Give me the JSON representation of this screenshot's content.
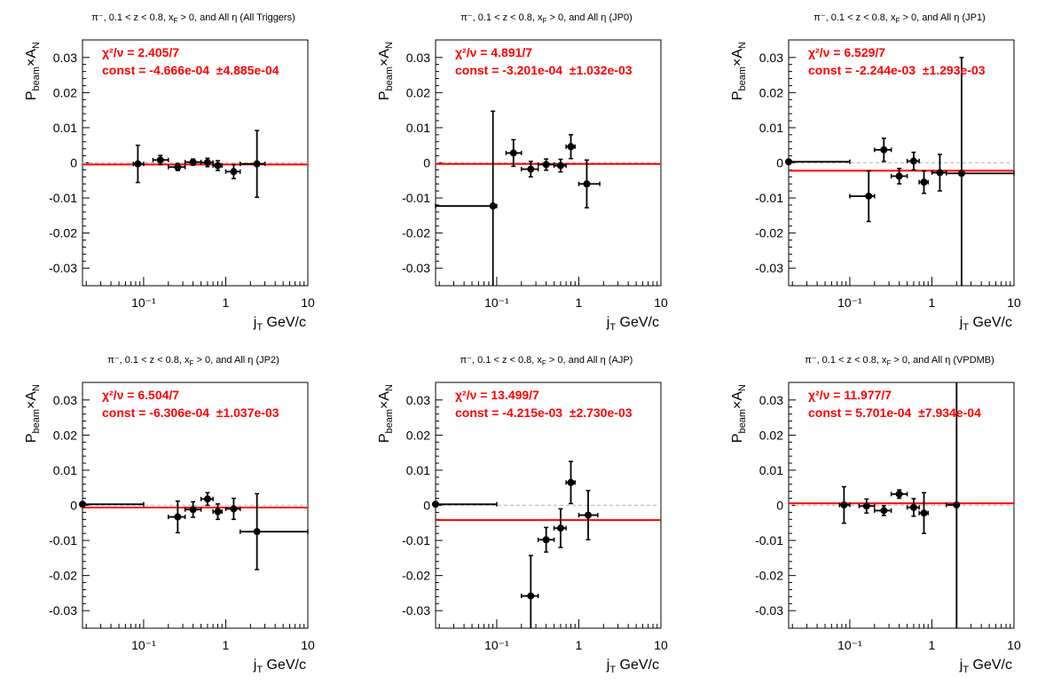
{
  "colors": {
    "fit": "#ff0000",
    "points": "#000000",
    "zero_line": "#c0c0c0"
  },
  "chart_data": [
    {
      "type": "scatter",
      "title": "π⁻, 0.1 < z < 0.8, x_F > 0, and All η (All Triggers)",
      "ylabel": "P_beam×A_N",
      "xlabel": "j_T GeV/c",
      "xscale": "log",
      "xlim": [
        0.018,
        10
      ],
      "ylim": [
        -0.035,
        0.035
      ],
      "yticks": [
        -0.03,
        -0.02,
        -0.01,
        0,
        0.01,
        0.02,
        0.03
      ],
      "xticks": [
        "10⁻¹",
        "1",
        "10"
      ],
      "fit": {
        "chi2_label": "χ²/ν = 2.405/7",
        "const_label": "const = -4.666e-04  ±4.885e-04",
        "const": -0.0004666,
        "err": 0.0004885
      },
      "points": [
        {
          "x": 0.085,
          "y": -0.0003,
          "xlo": 0.075,
          "xhi": 0.1,
          "yerr": 0.0053
        },
        {
          "x": 0.16,
          "y": 0.0008,
          "xlo": 0.13,
          "xhi": 0.2,
          "yerr": 0.0013
        },
        {
          "x": 0.26,
          "y": -0.0012,
          "xlo": 0.2,
          "xhi": 0.32,
          "yerr": 0.001
        },
        {
          "x": 0.4,
          "y": 0.0002,
          "xlo": 0.32,
          "xhi": 0.5,
          "yerr": 0.0009
        },
        {
          "x": 0.6,
          "y": 0.0001,
          "xlo": 0.5,
          "xhi": 0.7,
          "yerr": 0.0012
        },
        {
          "x": 0.8,
          "y": -0.0008,
          "xlo": 0.7,
          "xhi": 0.9,
          "yerr": 0.0014
        },
        {
          "x": 1.25,
          "y": -0.0025,
          "xlo": 1.0,
          "xhi": 1.5,
          "yerr": 0.002
        },
        {
          "x": 2.4,
          "y": -0.0003,
          "xlo": 1.5,
          "xhi": 3.0,
          "yerr": 0.0095
        }
      ]
    },
    {
      "type": "scatter",
      "title": "π⁻, 0.1 < z < 0.8, x_F > 0, and All η (JP0)",
      "ylabel": "P_beam×A_N",
      "xlabel": "j_T GeV/c",
      "xscale": "log",
      "xlim": [
        0.018,
        10
      ],
      "ylim": [
        -0.035,
        0.035
      ],
      "yticks": [
        -0.03,
        -0.02,
        -0.01,
        0,
        0.01,
        0.02,
        0.03
      ],
      "xticks": [
        "10⁻¹",
        "1",
        "10"
      ],
      "fit": {
        "chi2_label": "χ²/ν = 4.891/7",
        "const_label": "const = -3.201e-04  ±1.032e-03",
        "const": -0.0003201,
        "err": 0.001032
      },
      "points": [
        {
          "x": 0.09,
          "y": -0.0123,
          "xlo": 0.018,
          "xhi": 0.1,
          "yerr": 0.027
        },
        {
          "x": 0.16,
          "y": 0.0028,
          "xlo": 0.13,
          "xhi": 0.2,
          "yerr": 0.0038
        },
        {
          "x": 0.26,
          "y": -0.0018,
          "xlo": 0.2,
          "xhi": 0.32,
          "yerr": 0.0022
        },
        {
          "x": 0.4,
          "y": -0.0005,
          "xlo": 0.32,
          "xhi": 0.5,
          "yerr": 0.0016
        },
        {
          "x": 0.6,
          "y": -0.0008,
          "xlo": 0.5,
          "xhi": 0.7,
          "yerr": 0.0018
        },
        {
          "x": 0.8,
          "y": 0.0046,
          "xlo": 0.7,
          "xhi": 0.9,
          "yerr": 0.0034
        },
        {
          "x": 1.25,
          "y": -0.006,
          "xlo": 1.0,
          "xhi": 1.8,
          "yerr": 0.0068
        }
      ]
    },
    {
      "type": "scatter",
      "title": "π⁻, 0.1 < z < 0.8, x_F > 0, and All η (JP1)",
      "ylabel": "P_beam×A_N",
      "xlabel": "j_T GeV/c",
      "xscale": "log",
      "xlim": [
        0.018,
        10
      ],
      "ylim": [
        -0.035,
        0.035
      ],
      "yticks": [
        -0.03,
        -0.02,
        -0.01,
        0,
        0.01,
        0.02,
        0.03
      ],
      "xticks": [
        "10⁻¹",
        "1",
        "10"
      ],
      "fit": {
        "chi2_label": "χ²/ν = 6.529/7",
        "const_label": "const = -2.244e-03  ±1.293e-03",
        "const": -0.002244,
        "err": 0.001293
      },
      "points": [
        {
          "x": 0.018,
          "y": 0.0003,
          "xlo": 0.018,
          "xhi": 0.1,
          "yerr": 0
        },
        {
          "x": 0.17,
          "y": -0.0095,
          "xlo": 0.1,
          "xhi": 0.2,
          "yerr": 0.0072
        },
        {
          "x": 0.26,
          "y": 0.0037,
          "xlo": 0.2,
          "xhi": 0.32,
          "yerr": 0.0033
        },
        {
          "x": 0.4,
          "y": -0.0038,
          "xlo": 0.32,
          "xhi": 0.5,
          "yerr": 0.0022
        },
        {
          "x": 0.6,
          "y": 0.0005,
          "xlo": 0.5,
          "xhi": 0.7,
          "yerr": 0.0025
        },
        {
          "x": 0.8,
          "y": -0.0055,
          "xlo": 0.7,
          "xhi": 0.9,
          "yerr": 0.0032
        },
        {
          "x": 1.25,
          "y": -0.0028,
          "xlo": 1.0,
          "xhi": 1.5,
          "yerr": 0.0052
        },
        {
          "x": 2.3,
          "y": -0.003,
          "xlo": 1.5,
          "xhi": 10,
          "yerr": 0.033
        }
      ]
    },
    {
      "type": "scatter",
      "title": "π⁻, 0.1 < z < 0.8, x_F > 0, and All η (JP2)",
      "ylabel": "P_beam×A_N",
      "xlabel": "j_T GeV/c",
      "xscale": "log",
      "xlim": [
        0.018,
        10
      ],
      "ylim": [
        -0.035,
        0.035
      ],
      "yticks": [
        -0.03,
        -0.02,
        -0.01,
        0,
        0.01,
        0.02,
        0.03
      ],
      "xticks": [
        "10⁻¹",
        "1",
        "10"
      ],
      "fit": {
        "chi2_label": "χ²/ν = 6.504/7",
        "const_label": "const = -6.306e-04  ±1.037e-03",
        "const": -0.0006306,
        "err": 0.001037
      },
      "points": [
        {
          "x": 0.018,
          "y": 0.0003,
          "xlo": 0.018,
          "xhi": 0.1,
          "yerr": 0
        },
        {
          "x": 0.26,
          "y": -0.0033,
          "xlo": 0.2,
          "xhi": 0.32,
          "yerr": 0.0045
        },
        {
          "x": 0.4,
          "y": -0.0012,
          "xlo": 0.32,
          "xhi": 0.5,
          "yerr": 0.0022
        },
        {
          "x": 0.6,
          "y": 0.0018,
          "xlo": 0.5,
          "xhi": 0.7,
          "yerr": 0.0018
        },
        {
          "x": 0.8,
          "y": -0.0018,
          "xlo": 0.7,
          "xhi": 0.9,
          "yerr": 0.0022
        },
        {
          "x": 1.25,
          "y": -0.001,
          "xlo": 1.0,
          "xhi": 1.5,
          "yerr": 0.003
        },
        {
          "x": 2.4,
          "y": -0.0075,
          "xlo": 1.5,
          "xhi": 10,
          "yerr": 0.0108
        }
      ]
    },
    {
      "type": "scatter",
      "title": "π⁻, 0.1 < z < 0.8, x_F > 0, and All η (AJP)",
      "ylabel": "P_beam×A_N",
      "xlabel": "j_T GeV/c",
      "xscale": "log",
      "xlim": [
        0.018,
        10
      ],
      "ylim": [
        -0.035,
        0.035
      ],
      "yticks": [
        -0.03,
        -0.02,
        -0.01,
        0,
        0.01,
        0.02,
        0.03
      ],
      "xticks": [
        "10⁻¹",
        "1",
        "10"
      ],
      "fit": {
        "chi2_label": "χ²/ν = 13.499/7",
        "const_label": "const = -4.215e-03  ±2.730e-03",
        "const": -0.004215,
        "err": 0.00273
      },
      "points": [
        {
          "x": 0.018,
          "y": 0.0003,
          "xlo": 0.018,
          "xhi": 0.1,
          "yerr": 0
        },
        {
          "x": 0.26,
          "y": -0.0258,
          "xlo": 0.2,
          "xhi": 0.32,
          "yerr": 0.0115
        },
        {
          "x": 0.4,
          "y": -0.0098,
          "xlo": 0.32,
          "xhi": 0.5,
          "yerr": 0.0035
        },
        {
          "x": 0.6,
          "y": -0.0065,
          "xlo": 0.5,
          "xhi": 0.7,
          "yerr": 0.0055
        },
        {
          "x": 0.8,
          "y": 0.0065,
          "xlo": 0.7,
          "xhi": 0.9,
          "yerr": 0.006
        },
        {
          "x": 1.3,
          "y": -0.0028,
          "xlo": 1.0,
          "xhi": 1.7,
          "yerr": 0.007
        }
      ]
    },
    {
      "type": "scatter",
      "title": "π⁻, 0.1 < z < 0.8, x_F > 0, and All η (VPDMB)",
      "ylabel": "P_beam×A_N",
      "xlabel": "j_T GeV/c",
      "xscale": "log",
      "xlim": [
        0.018,
        10
      ],
      "ylim": [
        -0.035,
        0.035
      ],
      "yticks": [
        -0.03,
        -0.02,
        -0.01,
        0,
        0.01,
        0.02,
        0.03
      ],
      "xticks": [
        "10⁻¹",
        "1",
        "10"
      ],
      "fit": {
        "chi2_label": "χ²/ν = 11.977/7",
        "const_label": "const = 5.701e-04  ±7.934e-04",
        "const": 0.0005701,
        "err": 0.0007934
      },
      "points": [
        {
          "x": 0.085,
          "y": 0.0001,
          "xlo": 0.075,
          "xhi": 0.1,
          "yerr": 0.0052
        },
        {
          "x": 0.16,
          "y": -0.0002,
          "xlo": 0.13,
          "xhi": 0.2,
          "yerr": 0.002
        },
        {
          "x": 0.26,
          "y": -0.0015,
          "xlo": 0.2,
          "xhi": 0.32,
          "yerr": 0.0014
        },
        {
          "x": 0.4,
          "y": 0.0032,
          "xlo": 0.32,
          "xhi": 0.5,
          "yerr": 0.0012
        },
        {
          "x": 0.6,
          "y": -0.0006,
          "xlo": 0.5,
          "xhi": 0.7,
          "yerr": 0.0025
        },
        {
          "x": 0.8,
          "y": -0.0022,
          "xlo": 0.7,
          "xhi": 0.9,
          "yerr": 0.0058
        },
        {
          "x": 2.0,
          "y": 0.0001,
          "xlo": 1.5,
          "xhi": 2.0,
          "yerr": 0.036
        }
      ]
    }
  ]
}
